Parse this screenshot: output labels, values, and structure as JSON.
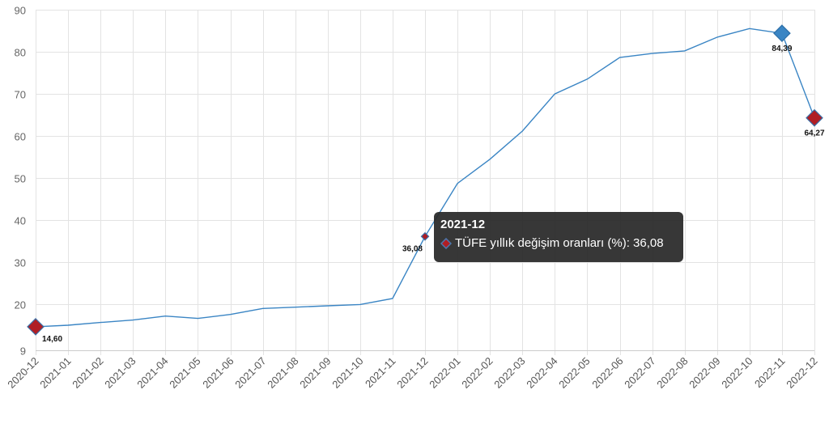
{
  "chart_data": {
    "type": "line",
    "title": "",
    "xlabel": "",
    "ylabel": "",
    "categories": [
      "2020-12",
      "2021-01",
      "2021-02",
      "2021-03",
      "2021-04",
      "2021-05",
      "2021-06",
      "2021-07",
      "2021-08",
      "2021-09",
      "2021-10",
      "2021-11",
      "2021-12",
      "2022-01",
      "2022-02",
      "2022-03",
      "2022-04",
      "2022-05",
      "2022-06",
      "2022-07",
      "2022-08",
      "2022-09",
      "2022-10",
      "2022-11",
      "2022-12"
    ],
    "series": [
      {
        "name": "TÜFE yıllık değişim oranları (%)",
        "values": [
          14.6,
          14.97,
          15.61,
          16.19,
          17.14,
          16.59,
          17.53,
          18.95,
          19.25,
          19.58,
          19.89,
          21.31,
          36.08,
          48.69,
          54.44,
          61.14,
          69.97,
          73.5,
          78.62,
          79.6,
          80.21,
          83.45,
          85.51,
          84.39,
          64.27
        ],
        "color": "#3a85c4"
      }
    ],
    "ylim": [
      9,
      90
    ],
    "yticks": [
      9,
      20,
      30,
      40,
      50,
      60,
      70,
      80,
      90
    ],
    "grid": true,
    "markers": [
      {
        "index": 0,
        "label": "14,60",
        "color": "#b01e24",
        "border": "#3a6ea5"
      },
      {
        "index": 12,
        "label": "36,08",
        "color": "#b01e24",
        "border": "#3a6ea5"
      },
      {
        "index": 23,
        "label": "84,39",
        "color": "#3a85c4",
        "border": "#2d6fa8"
      },
      {
        "index": 24,
        "label": "64,27",
        "color": "#b01e24",
        "border": "#3a6ea5"
      }
    ]
  },
  "tooltip": {
    "title": "2021-12",
    "text": "TÜFE yıllık değişim oranları (%): 36,08",
    "icon": "red-diamond-icon"
  }
}
